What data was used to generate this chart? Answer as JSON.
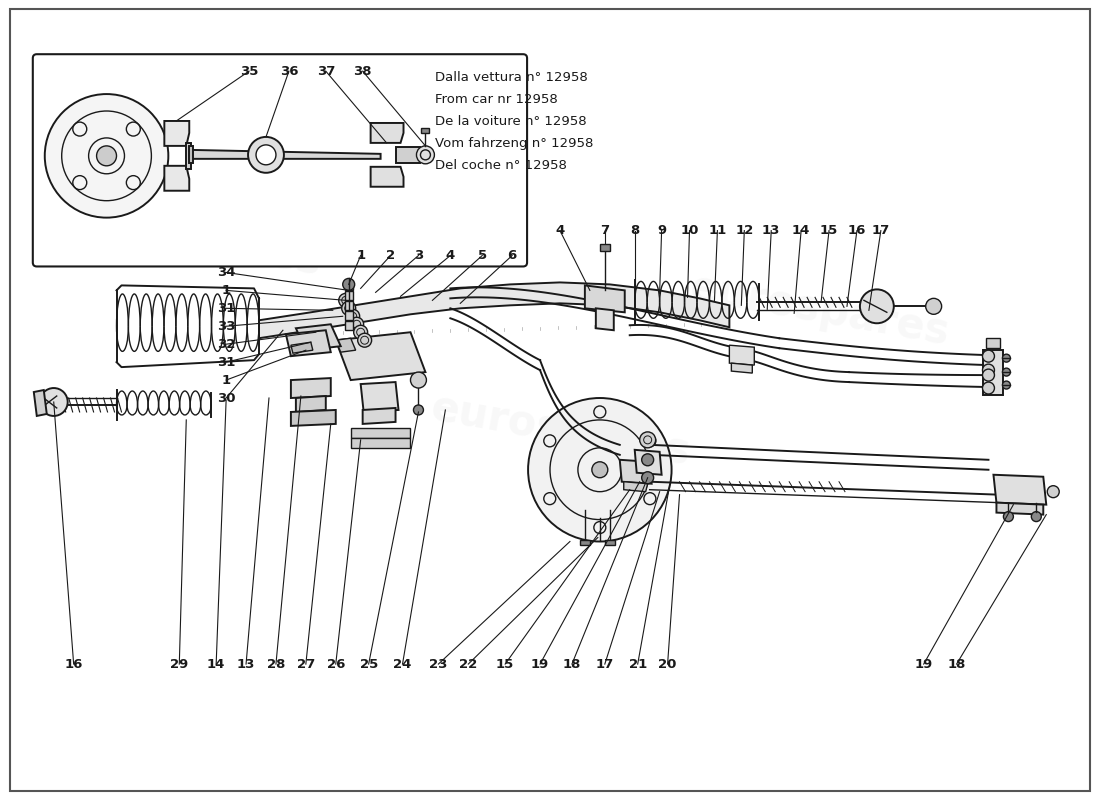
{
  "bg_color": "#ffffff",
  "line_color": "#1a1a1a",
  "watermark_text": "eurospares",
  "watermark_color": "#c8c8c8",
  "inset_notes": [
    "Dalla vettura n° 12958",
    "From car nr 12958",
    "De la voiture n° 12958",
    "Vom fahrzeng n° 12958",
    "Del coche n° 12958"
  ],
  "font_size_label": 9.5,
  "font_size_note": 9.5
}
